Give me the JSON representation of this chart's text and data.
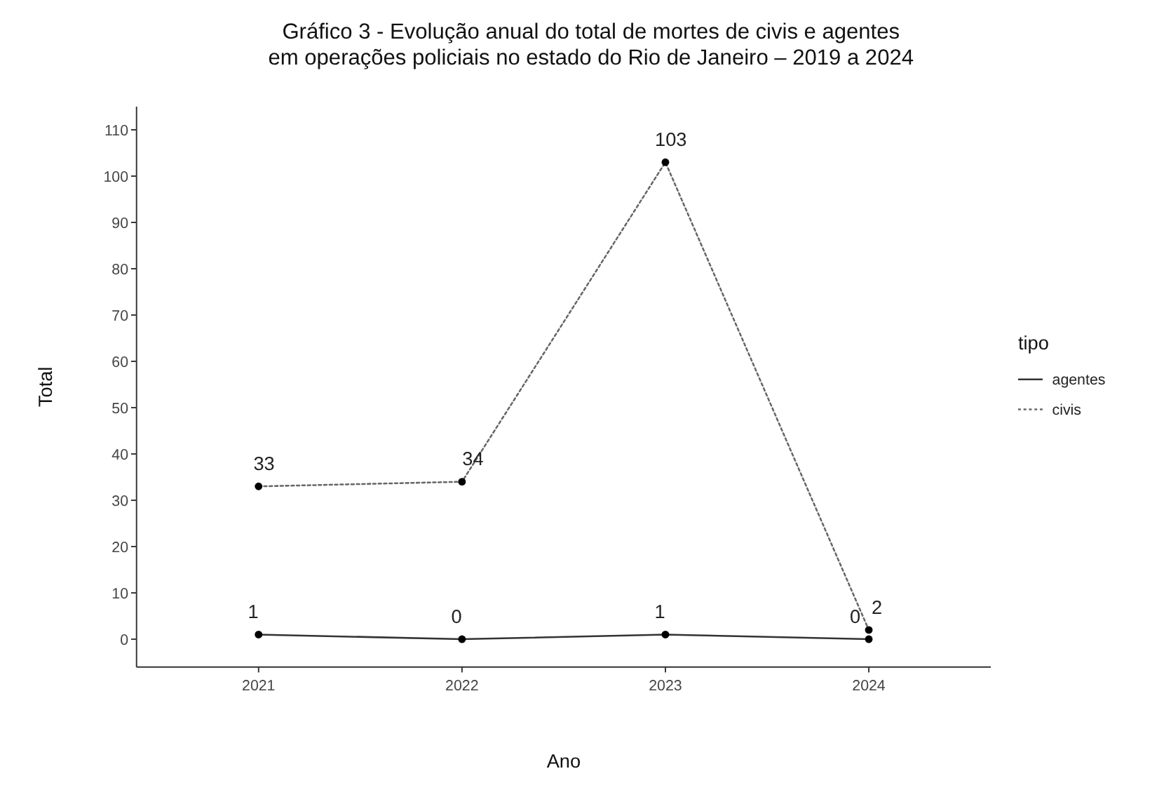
{
  "chart_data": {
    "type": "line",
    "title": "Gráfico 3 - Evolução anual do total de mortes de civis e agentes\nem operações policiais no estado do Rio de Janeiro – 2019 a 2024",
    "xlabel": "Ano",
    "ylabel": "Total",
    "legend_title": "tipo",
    "categories": [
      "2021",
      "2022",
      "2023",
      "2024"
    ],
    "series": [
      {
        "name": "agentes",
        "color": "#333333",
        "values": [
          1,
          0,
          1,
          0
        ],
        "line_style": "solid"
      },
      {
        "name": "civis",
        "color": "#666666",
        "values": [
          33,
          34,
          103,
          2
        ],
        "line_style": "dotted"
      }
    ],
    "ylim": [
      -6,
      115
    ],
    "yticks": [
      0,
      10,
      20,
      30,
      40,
      50,
      60,
      70,
      80,
      90,
      100,
      110
    ],
    "marker": "circle",
    "data_labels": true,
    "legend": "right",
    "grid": false
  }
}
